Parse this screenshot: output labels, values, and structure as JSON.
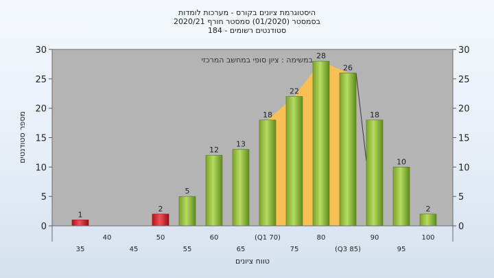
{
  "chart_data": {
    "type": "bar",
    "title_lines": [
      "היסטוגרמת ציונים בקורס - מערכות לומדות",
      "בסמסטר  (01/2020)  סמסטר חורף 2020/21",
      "סטודנטים רשומים - 184"
    ],
    "annotation": "במשימה : ציון סופי במחשב המרכזי",
    "xlabel": "טווח ציונים",
    "ylabel": "מספר סטודנטים",
    "ylim": [
      0,
      30
    ],
    "yticks": [
      0,
      5,
      10,
      15,
      20,
      25,
      30
    ],
    "categories": [
      "35",
      "40",
      "45",
      "50",
      "55",
      "60",
      "65",
      "70",
      "75",
      "80",
      "85",
      "90",
      "95",
      "100"
    ],
    "tick_labels": [
      "35",
      "40",
      "45",
      "50",
      "55",
      "60",
      "65",
      "(Q1 70)",
      "75",
      "80",
      "(Q3 85)",
      "90",
      "95",
      "100"
    ],
    "values": [
      1,
      0,
      0,
      2,
      5,
      12,
      13,
      18,
      22,
      28,
      26,
      18,
      10,
      2
    ],
    "bar_colors": [
      "red",
      null,
      null,
      "red",
      "green",
      "green",
      "green",
      "green",
      "green",
      "green",
      "green",
      "green",
      "green",
      "green"
    ],
    "iqr_band": {
      "from": "70",
      "to": "85",
      "color": "#ffc04a"
    },
    "colors": {
      "green": "#8fbf3a",
      "red": "#d92027",
      "plot_bg": "#b4b4b4",
      "band": "#ffc04a"
    },
    "grid": false,
    "legend": "none"
  }
}
